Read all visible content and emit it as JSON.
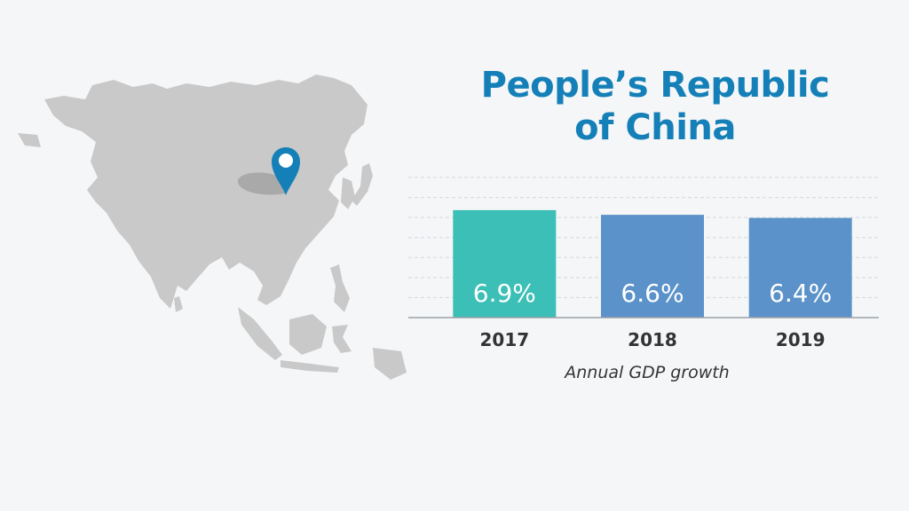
{
  "title_lines": [
    "People’s Republic",
    "of China"
  ],
  "map": {
    "icon": "map-pin-icon",
    "pin_color": "#1580b8",
    "land_color": "#c9c9c9"
  },
  "chart_data": {
    "type": "bar",
    "categories": [
      "2017",
      "2018",
      "2019"
    ],
    "values": [
      6.9,
      6.6,
      6.4
    ],
    "value_labels": [
      "6.9%",
      "6.6%",
      "6.4%"
    ],
    "colors": [
      "#3bbfb6",
      "#5b92c9",
      "#5b92c9"
    ],
    "xlabel": "Annual GDP growth",
    "ylabel": "",
    "ylim": [
      0,
      9
    ],
    "grid": true
  }
}
